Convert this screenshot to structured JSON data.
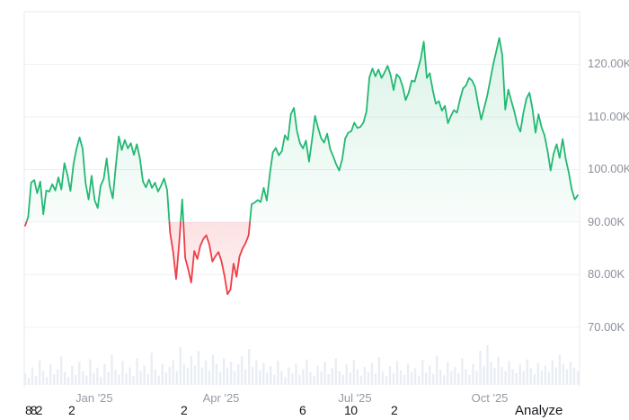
{
  "chart_data": {
    "type": "line",
    "subtype": "baseline-area-with-volume",
    "title": "",
    "xlabel": "",
    "ylabel": "",
    "baseline": 90,
    "ylim": [
      58.7,
      130
    ],
    "y_ticks": [
      {
        "value": 120,
        "label": "120.00K"
      },
      {
        "value": 110,
        "label": "110.00K"
      },
      {
        "value": 100,
        "label": "100.00K"
      },
      {
        "value": 90,
        "label": "90.00K"
      },
      {
        "value": 80,
        "label": "80.00K"
      },
      {
        "value": 70,
        "label": "70.00K"
      }
    ],
    "x_ticks": [
      {
        "label": "Jan '25",
        "f": 0.125
      },
      {
        "label": "Apr '25",
        "f": 0.3545
      },
      {
        "label": "Jul '25",
        "f": 0.5967
      },
      {
        "label": "Oct '25",
        "f": 0.8407
      }
    ],
    "series": [
      {
        "name": "price",
        "unit": "K",
        "values": [
          89.3,
          91.0,
          97.5,
          98.0,
          95.5,
          97.7,
          91.5,
          96.0,
          95.8,
          97.2,
          96.0,
          98.5,
          96.2,
          101.2,
          99.0,
          95.9,
          101.0,
          103.9,
          106.1,
          104.0,
          97.5,
          94.3,
          98.8,
          94.2,
          92.7,
          96.9,
          98.2,
          102.1,
          96.9,
          94.5,
          100.5,
          106.3,
          103.7,
          105.6,
          104.0,
          105.0,
          102.8,
          104.8,
          102.1,
          97.7,
          96.6,
          98.1,
          96.5,
          97.5,
          95.8,
          96.9,
          98.3,
          96.1,
          88.0,
          84.3,
          79.2,
          86.0,
          94.3,
          83.2,
          81.0,
          78.5,
          84.5,
          83.0,
          85.5,
          86.8,
          87.5,
          85.7,
          82.5,
          83.5,
          84.3,
          82.6,
          79.8,
          76.3,
          77.2,
          82.1,
          79.6,
          83.5,
          85.0,
          86.0,
          87.5,
          93.4,
          93.7,
          94.2,
          93.8,
          96.5,
          94.1,
          99.0,
          103.2,
          104.1,
          102.7,
          103.5,
          106.5,
          105.6,
          110.5,
          111.7,
          107.3,
          105.0,
          104.0,
          105.5,
          101.5,
          105.7,
          110.2,
          107.9,
          106.0,
          105.1,
          106.8,
          103.9,
          102.5,
          101.0,
          99.8,
          102.0,
          105.9,
          107.0,
          107.3,
          108.9,
          107.9,
          108.1,
          108.9,
          111.0,
          117.5,
          119.2,
          117.7,
          119.0,
          117.4,
          118.4,
          119.7,
          118.0,
          115.1,
          118.1,
          117.5,
          115.8,
          113.2,
          114.6,
          116.9,
          116.7,
          118.9,
          121.0,
          124.3,
          117.4,
          118.3,
          115.0,
          112.5,
          113.0,
          111.2,
          112.1,
          108.8,
          110.2,
          111.3,
          110.8,
          113.3,
          115.4,
          116.0,
          117.4,
          116.9,
          115.7,
          112.4,
          109.5,
          111.7,
          114.0,
          116.9,
          120.0,
          122.5,
          125.0,
          121.7,
          111.4,
          115.2,
          113.0,
          111.0,
          108.5,
          107.2,
          110.8,
          113.5,
          114.6,
          111.5,
          107.0,
          110.5,
          108.0,
          106.5,
          103.5,
          99.8,
          103.0,
          104.8,
          102.2,
          105.8,
          102.0,
          99.5,
          96.2,
          94.3,
          95.1
        ]
      }
    ],
    "volume_bars": [
      0.25,
      0.12,
      0.4,
      0.18,
      0.6,
      0.3,
      0.15,
      0.5,
      0.22,
      0.35,
      0.7,
      0.28,
      0.14,
      0.45,
      0.2,
      0.55,
      0.3,
      0.18,
      0.62,
      0.25,
      0.38,
      0.15,
      0.5,
      0.28,
      0.75,
      0.33,
      0.2,
      0.58,
      0.24,
      0.4,
      0.16,
      0.65,
      0.3,
      0.45,
      0.22,
      0.8,
      0.35,
      0.18,
      0.5,
      0.26,
      0.42,
      0.6,
      0.3,
      0.95,
      0.5,
      0.38,
      0.7,
      0.45,
      0.85,
      0.4,
      0.6,
      0.32,
      0.75,
      0.5,
      0.28,
      0.65,
      0.38,
      0.55,
      0.3,
      0.48,
      0.7,
      0.35,
      0.9,
      0.42,
      0.6,
      0.33,
      0.52,
      0.26,
      0.44,
      0.2,
      0.58,
      0.3,
      0.15,
      0.4,
      0.24,
      0.5,
      0.2,
      0.35,
      0.62,
      0.28,
      0.18,
      0.45,
      0.3,
      0.55,
      0.22,
      0.38,
      0.65,
      0.3,
      0.2,
      0.48,
      0.26,
      0.6,
      0.35,
      0.18,
      0.42,
      0.28,
      0.52,
      0.24,
      0.68,
      0.3,
      0.16,
      0.44,
      0.25,
      0.58,
      0.32,
      0.2,
      0.5,
      0.28,
      0.38,
      0.18,
      0.6,
      0.26,
      0.45,
      0.22,
      0.72,
      0.34,
      0.19,
      0.55,
      0.3,
      0.42,
      0.25,
      0.65,
      0.35,
      0.2,
      0.5,
      0.3,
      0.85,
      0.45,
      1.0,
      0.55,
      0.38,
      0.68,
      0.42,
      0.3,
      0.58,
      0.35,
      0.25,
      0.48,
      0.3,
      0.62,
      0.38,
      0.22,
      0.52,
      0.32,
      0.45,
      0.28,
      0.6,
      0.4,
      0.75,
      0.5,
      0.35,
      0.55,
      0.4,
      0.3
    ],
    "legend": [],
    "grid": "horizontal-only"
  },
  "colors": {
    "up": "#23b873",
    "down": "#ee3d47",
    "grid": "#f0f1f4",
    "border": "#e8eaee",
    "axis_text": "#8c919c",
    "volume": "#e9edf4",
    "text": "#16181d"
  },
  "bottom_row": {
    "items": [
      {
        "text": "882",
        "x": 28,
        "name": "bottom-number",
        "clickable": false,
        "tight": true
      },
      {
        "text": "2",
        "x": 76,
        "name": "bottom-number",
        "clickable": false,
        "tight": false
      },
      {
        "text": "2",
        "x": 201,
        "name": "bottom-number",
        "clickable": false,
        "tight": false
      },
      {
        "text": "6",
        "x": 333,
        "name": "bottom-number",
        "clickable": false,
        "tight": false
      },
      {
        "text": "10",
        "x": 383,
        "name": "bottom-number",
        "clickable": false,
        "tight": false
      },
      {
        "text": "2",
        "x": 435,
        "name": "bottom-number",
        "clickable": false,
        "tight": false
      },
      {
        "text": "Analyze",
        "x": 573,
        "name": "analyze-button",
        "clickable": true,
        "tight": false
      }
    ]
  }
}
